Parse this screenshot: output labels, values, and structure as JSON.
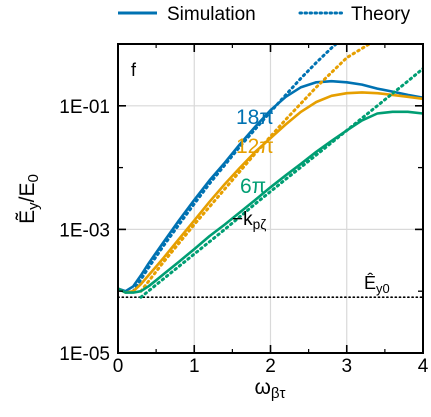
{
  "chart_data": {
    "type": "line",
    "panel_label": "f",
    "xlabel": "ω_βτ",
    "ylabel": "Ẽ_y/E_0",
    "y_scale": "log",
    "xlim": [
      0,
      4
    ],
    "ylim": [
      1e-05,
      1
    ],
    "x_ticks": [
      0,
      1,
      2,
      3,
      4
    ],
    "y_ticks": [
      1e-05,
      0.001,
      0.1
    ],
    "y_tick_labels": [
      "1E-05",
      "1E-03",
      "1E-01"
    ],
    "grid": true,
    "legend": {
      "placement": "top",
      "entries": [
        {
          "label": "Simulation",
          "style": "solid"
        },
        {
          "label": "Theory",
          "style": "dotted"
        }
      ]
    },
    "reference_line": {
      "label": "Ê_y0",
      "y": 8e-05,
      "style": "dotted",
      "color": "#000000"
    },
    "annotations": [
      {
        "text": "18π",
        "color": "#0072B2"
      },
      {
        "text": "12π",
        "color": "#E69F00"
      },
      {
        "text": "6π",
        "color": "#009E73"
      },
      {
        "text": "−k_pζ",
        "color": "#000000"
      }
    ],
    "series": [
      {
        "annotation": "18π",
        "color": "#0072B2",
        "simulation": {
          "x": [
            0,
            0.1,
            0.2,
            0.3,
            0.4,
            0.5,
            0.6,
            0.8,
            1.0,
            1.2,
            1.4,
            1.6,
            1.8,
            2.0,
            2.2,
            2.4,
            2.6,
            2.8,
            3.0,
            3.2,
            3.4,
            3.6,
            3.8,
            4.0
          ],
          "y": [
            0.00011,
            0.0001,
            0.00012,
            0.00018,
            0.00028,
            0.00042,
            0.00063,
            0.0014,
            0.003,
            0.0062,
            0.012,
            0.024,
            0.046,
            0.085,
            0.14,
            0.2,
            0.24,
            0.25,
            0.24,
            0.22,
            0.19,
            0.17,
            0.15,
            0.135
          ]
        },
        "theory": {
          "x": [
            0.2,
            0.4,
            0.6,
            0.8,
            1.0,
            1.2,
            1.4,
            1.6,
            1.8,
            2.0,
            2.2,
            2.4,
            2.6,
            2.8,
            2.9
          ],
          "y": [
            0.0001,
            0.00024,
            0.00055,
            0.0012,
            0.0026,
            0.0055,
            0.011,
            0.022,
            0.042,
            0.08,
            0.15,
            0.28,
            0.5,
            0.86,
            1.1
          ]
        }
      },
      {
        "annotation": "12π",
        "color": "#E69F00",
        "simulation": {
          "x": [
            0,
            0.1,
            0.2,
            0.3,
            0.4,
            0.5,
            0.6,
            0.8,
            1.0,
            1.2,
            1.4,
            1.6,
            1.8,
            2.0,
            2.2,
            2.4,
            2.6,
            2.8,
            3.0,
            3.2,
            3.4,
            3.6,
            3.8,
            4.0
          ],
          "y": [
            0.00011,
            9.5e-05,
            0.0001,
            0.00013,
            0.00018,
            0.00025,
            0.00035,
            0.0007,
            0.0014,
            0.0028,
            0.0054,
            0.01,
            0.018,
            0.03,
            0.05,
            0.08,
            0.115,
            0.145,
            0.16,
            0.165,
            0.16,
            0.15,
            0.14,
            0.13
          ]
        },
        "theory": {
          "x": [
            0.3,
            0.6,
            1.0,
            1.4,
            1.8,
            2.2,
            2.6,
            3.0,
            3.4,
            3.6
          ],
          "y": [
            0.0001,
            0.0003,
            0.0012,
            0.0045,
            0.017,
            0.06,
            0.2,
            0.6,
            1.2,
            1.5
          ]
        }
      },
      {
        "annotation": "6π",
        "color": "#009E73",
        "simulation": {
          "x": [
            0,
            0.1,
            0.2,
            0.3,
            0.4,
            0.5,
            0.6,
            0.8,
            1.0,
            1.2,
            1.4,
            1.6,
            1.8,
            2.0,
            2.2,
            2.4,
            2.6,
            2.8,
            3.0,
            3.2,
            3.4,
            3.6,
            3.8,
            4.0
          ],
          "y": [
            0.00011,
            9.5e-05,
            9.5e-05,
            0.0001,
            0.00012,
            0.00015,
            0.00019,
            0.0003,
            0.00048,
            0.00078,
            0.0012,
            0.0019,
            0.003,
            0.0048,
            0.0075,
            0.0115,
            0.018,
            0.027,
            0.04,
            0.058,
            0.075,
            0.08,
            0.08,
            0.075
          ]
        },
        "theory": {
          "x": [
            0.3,
            0.6,
            1.0,
            1.4,
            1.8,
            2.2,
            2.6,
            3.0,
            3.4,
            3.8,
            4.0
          ],
          "y": [
            8e-05,
            0.00016,
            0.0004,
            0.001,
            0.0026,
            0.0065,
            0.016,
            0.04,
            0.1,
            0.25,
            0.4
          ]
        }
      }
    ]
  }
}
